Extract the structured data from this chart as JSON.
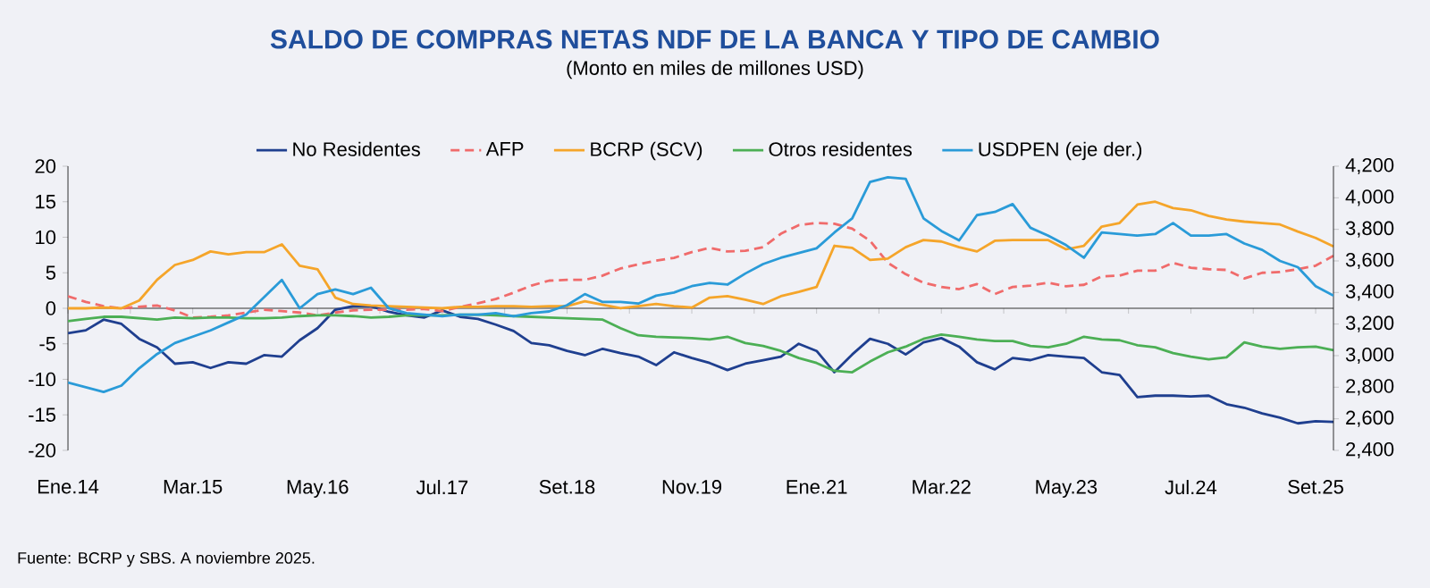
{
  "chart_data": {
    "type": "line",
    "title": "SALDO DE COMPRAS NETAS NDF DE LA BANCA Y TIPO DE CAMBIO",
    "subtitle": "(Monto en miles de millones USD)",
    "annotations": [
      "Fuente: BCRP y SBS. A noviembre 2025."
    ],
    "legend": "top",
    "x": [
      "2014-01",
      "2014-03",
      "2014-05",
      "2014-07",
      "2014-09",
      "2014-11",
      "2015-01",
      "2015-03",
      "2015-05",
      "2015-07",
      "2015-09",
      "2015-11",
      "2016-01",
      "2016-03",
      "2016-05",
      "2016-07",
      "2016-09",
      "2016-11",
      "2017-01",
      "2017-03",
      "2017-05",
      "2017-07",
      "2017-09",
      "2017-11",
      "2018-01",
      "2018-03",
      "2018-05",
      "2018-07",
      "2018-09",
      "2018-11",
      "2019-01",
      "2019-03",
      "2019-05",
      "2019-07",
      "2019-09",
      "2019-11",
      "2020-01",
      "2020-03",
      "2020-05",
      "2020-07",
      "2020-09",
      "2020-11",
      "2021-01",
      "2021-03",
      "2021-05",
      "2021-07",
      "2021-09",
      "2021-11",
      "2022-01",
      "2022-03",
      "2022-05",
      "2022-07",
      "2022-09",
      "2022-11",
      "2023-01",
      "2023-03",
      "2023-05",
      "2023-07",
      "2023-09",
      "2023-11",
      "2024-01",
      "2024-03",
      "2024-05",
      "2024-07",
      "2024-09",
      "2024-11",
      "2025-01",
      "2025-03",
      "2025-05",
      "2025-07",
      "2025-09",
      "2025-11"
    ],
    "xlim": [
      "2014-01",
      "2025-11"
    ],
    "xticks": [
      {
        "value": "2014-01",
        "label": "Ene.14"
      },
      {
        "value": "2014-08",
        "label": null
      },
      {
        "value": "2015-03",
        "label": "Mar.15"
      },
      {
        "value": "2015-10",
        "label": null
      },
      {
        "value": "2016-05",
        "label": "May.16"
      },
      {
        "value": "2016-12",
        "label": null
      },
      {
        "value": "2017-07",
        "label": "Jul.17"
      },
      {
        "value": "2018-02",
        "label": null
      },
      {
        "value": "2018-09",
        "label": "Set.18"
      },
      {
        "value": "2019-04",
        "label": null
      },
      {
        "value": "2019-11",
        "label": "Nov.19"
      },
      {
        "value": "2020-06",
        "label": null
      },
      {
        "value": "2021-01",
        "label": "Ene.21"
      },
      {
        "value": "2021-08",
        "label": null
      },
      {
        "value": "2022-03",
        "label": "Mar.22"
      },
      {
        "value": "2022-10",
        "label": null
      },
      {
        "value": "2023-05",
        "label": "May.23"
      },
      {
        "value": "2023-12",
        "label": null
      },
      {
        "value": "2024-07",
        "label": "Jul.24"
      },
      {
        "value": "2025-02",
        "label": null
      },
      {
        "value": "2025-09",
        "label": "Set.25"
      }
    ],
    "ylim": [
      -20,
      20
    ],
    "yticks": [
      -20,
      -15,
      -10,
      -5,
      0,
      5,
      10,
      15,
      20
    ],
    "y2lim": [
      2400,
      4200
    ],
    "y2ticks": [
      {
        "value": 2400,
        "label": "2,400"
      },
      {
        "value": 2600,
        "label": "2,600"
      },
      {
        "value": 2800,
        "label": "2,800"
      },
      {
        "value": 3000,
        "label": "3,000"
      },
      {
        "value": 3200,
        "label": "3,200"
      },
      {
        "value": 3400,
        "label": "3,400"
      },
      {
        "value": 3600,
        "label": "3,600"
      },
      {
        "value": 3800,
        "label": "3,800"
      },
      {
        "value": 4000,
        "label": "4,000"
      },
      {
        "value": 4200,
        "label": "4,200"
      }
    ],
    "series": [
      {
        "name": "No Residentes",
        "color": "#1f3f8f",
        "line_style": "solid",
        "values": [
          -3.5,
          -3.1,
          -1.6,
          -2.2,
          -4.3,
          -5.5,
          -7.8,
          -7.6,
          -8.4,
          -7.6,
          -7.8,
          -6.6,
          -6.8,
          -4.5,
          -2.8,
          -0.2,
          0.3,
          0.3,
          -0.5,
          -1.0,
          -1.3,
          -0.3,
          -1.2,
          -1.5,
          -2.3,
          -3.2,
          -4.9,
          -5.2,
          -6.0,
          -6.6,
          -5.7,
          -6.3,
          -6.8,
          -8.0,
          -6.2,
          -7.0,
          -7.7,
          -8.7,
          -7.8,
          -7.3,
          -6.8,
          -5.0,
          -6.0,
          -9.0,
          -6.5,
          -4.3,
          -5.0,
          -6.5,
          -4.8,
          -4.2,
          -5.4,
          -7.6,
          -8.6,
          -7.0,
          -7.3,
          -6.6,
          -6.8,
          -7.0,
          -9.0,
          -9.4,
          -12.5,
          -12.3,
          -12.3,
          -12.4,
          -12.3,
          -13.5,
          -14.0,
          -14.8,
          -15.4,
          -16.2,
          -15.9,
          -16.0
        ]
      },
      {
        "name": "AFP",
        "color": "#f06b6b",
        "line_style": "dashed",
        "values": [
          1.7,
          0.9,
          0.3,
          0,
          0.2,
          0.4,
          -0.3,
          -1.3,
          -1.2,
          -1.0,
          -0.6,
          -0.2,
          -0.4,
          -0.6,
          -1.0,
          -0.6,
          -0.3,
          -0.2,
          -0.2,
          -0.2,
          -0.1,
          -0.4,
          0.2,
          0.7,
          1.3,
          2.2,
          3.2,
          3.9,
          4.0,
          4.0,
          4.6,
          5.6,
          6.2,
          6.7,
          7.1,
          7.9,
          8.5,
          8.0,
          8.1,
          8.6,
          10.5,
          11.7,
          12.0,
          11.9,
          11.2,
          9.5,
          6.4,
          4.8,
          3.6,
          3.0,
          2.7,
          3.4,
          2.0,
          3.0,
          3.2,
          3.6,
          3.1,
          3.3,
          4.5,
          4.6,
          5.3,
          5.3,
          6.4,
          5.7,
          5.5,
          5.4,
          4.2,
          5.0,
          5.1,
          5.5,
          6.0,
          7.4
        ]
      },
      {
        "name": "BCRP (SCV)",
        "color": "#f5a52a",
        "line_style": "solid",
        "values": [
          0,
          0,
          0.1,
          0,
          1.1,
          4.0,
          6.1,
          6.8,
          8.0,
          7.6,
          7.9,
          7.9,
          9.0,
          6.0,
          5.5,
          1.5,
          0.6,
          0.4,
          0.3,
          0.2,
          0.1,
          0,
          0.2,
          0.2,
          0.3,
          0.3,
          0.2,
          0.3,
          0.3,
          1.0,
          0.5,
          0,
          0.3,
          0.6,
          0.3,
          0.1,
          1.5,
          1.7,
          1.2,
          0.6,
          1.7,
          2.3,
          3.0,
          8.8,
          8.5,
          6.8,
          7.0,
          8.6,
          9.6,
          9.4,
          8.6,
          8.0,
          9.5,
          9.6,
          9.6,
          9.6,
          8.3,
          8.8,
          11.5,
          12.0,
          14.6,
          15.0,
          14.1,
          13.8,
          13.0,
          12.5,
          12.2,
          12.0,
          11.8,
          10.8,
          9.9,
          8.7
        ]
      },
      {
        "name": "Otros residentes",
        "color": "#4caf55",
        "line_style": "solid",
        "values": [
          -1.8,
          -1.5,
          -1.2,
          -1.2,
          -1.4,
          -1.6,
          -1.3,
          -1.4,
          -1.3,
          -1.3,
          -1.4,
          -1.4,
          -1.3,
          -1.1,
          -1.0,
          -1.0,
          -1.1,
          -1.3,
          -1.2,
          -1.0,
          -1.0,
          -1.0,
          -0.9,
          -0.9,
          -1.0,
          -1.1,
          -1.2,
          -1.3,
          -1.4,
          -1.5,
          -1.6,
          -2.8,
          -3.8,
          -4.0,
          -4.1,
          -4.2,
          -4.4,
          -4.0,
          -4.9,
          -5.3,
          -6.0,
          -7.0,
          -7.7,
          -8.8,
          -9.0,
          -7.5,
          -6.2,
          -5.4,
          -4.3,
          -3.7,
          -4.0,
          -4.4,
          -4.6,
          -4.6,
          -5.3,
          -5.5,
          -5.0,
          -4.0,
          -4.4,
          -4.5,
          -5.2,
          -5.5,
          -6.3,
          -6.8,
          -7.2,
          -6.9,
          -4.8,
          -5.4,
          -5.7,
          -5.5,
          -5.4,
          -5.9
        ]
      },
      {
        "name": "USDPEN (eje der.)",
        "color": "#2a9bd8",
        "line_style": "solid",
        "axis": "y2",
        "values": [
          2830,
          2800,
          2770,
          2810,
          2920,
          3010,
          3080,
          3120,
          3160,
          3210,
          3260,
          3370,
          3480,
          3300,
          3390,
          3420,
          3390,
          3430,
          3300,
          3270,
          3260,
          3250,
          3260,
          3260,
          3270,
          3250,
          3270,
          3280,
          3320,
          3390,
          3340,
          3340,
          3330,
          3380,
          3400,
          3440,
          3460,
          3450,
          3520,
          3580,
          3620,
          3650,
          3680,
          3780,
          3870,
          4100,
          4130,
          4120,
          3870,
          3790,
          3730,
          3890,
          3910,
          3960,
          3810,
          3760,
          3700,
          3620,
          3780,
          3770,
          3760,
          3770,
          3840,
          3760,
          3760,
          3770,
          3710,
          3670,
          3600,
          3560,
          3440,
          3380
        ]
      }
    ]
  }
}
